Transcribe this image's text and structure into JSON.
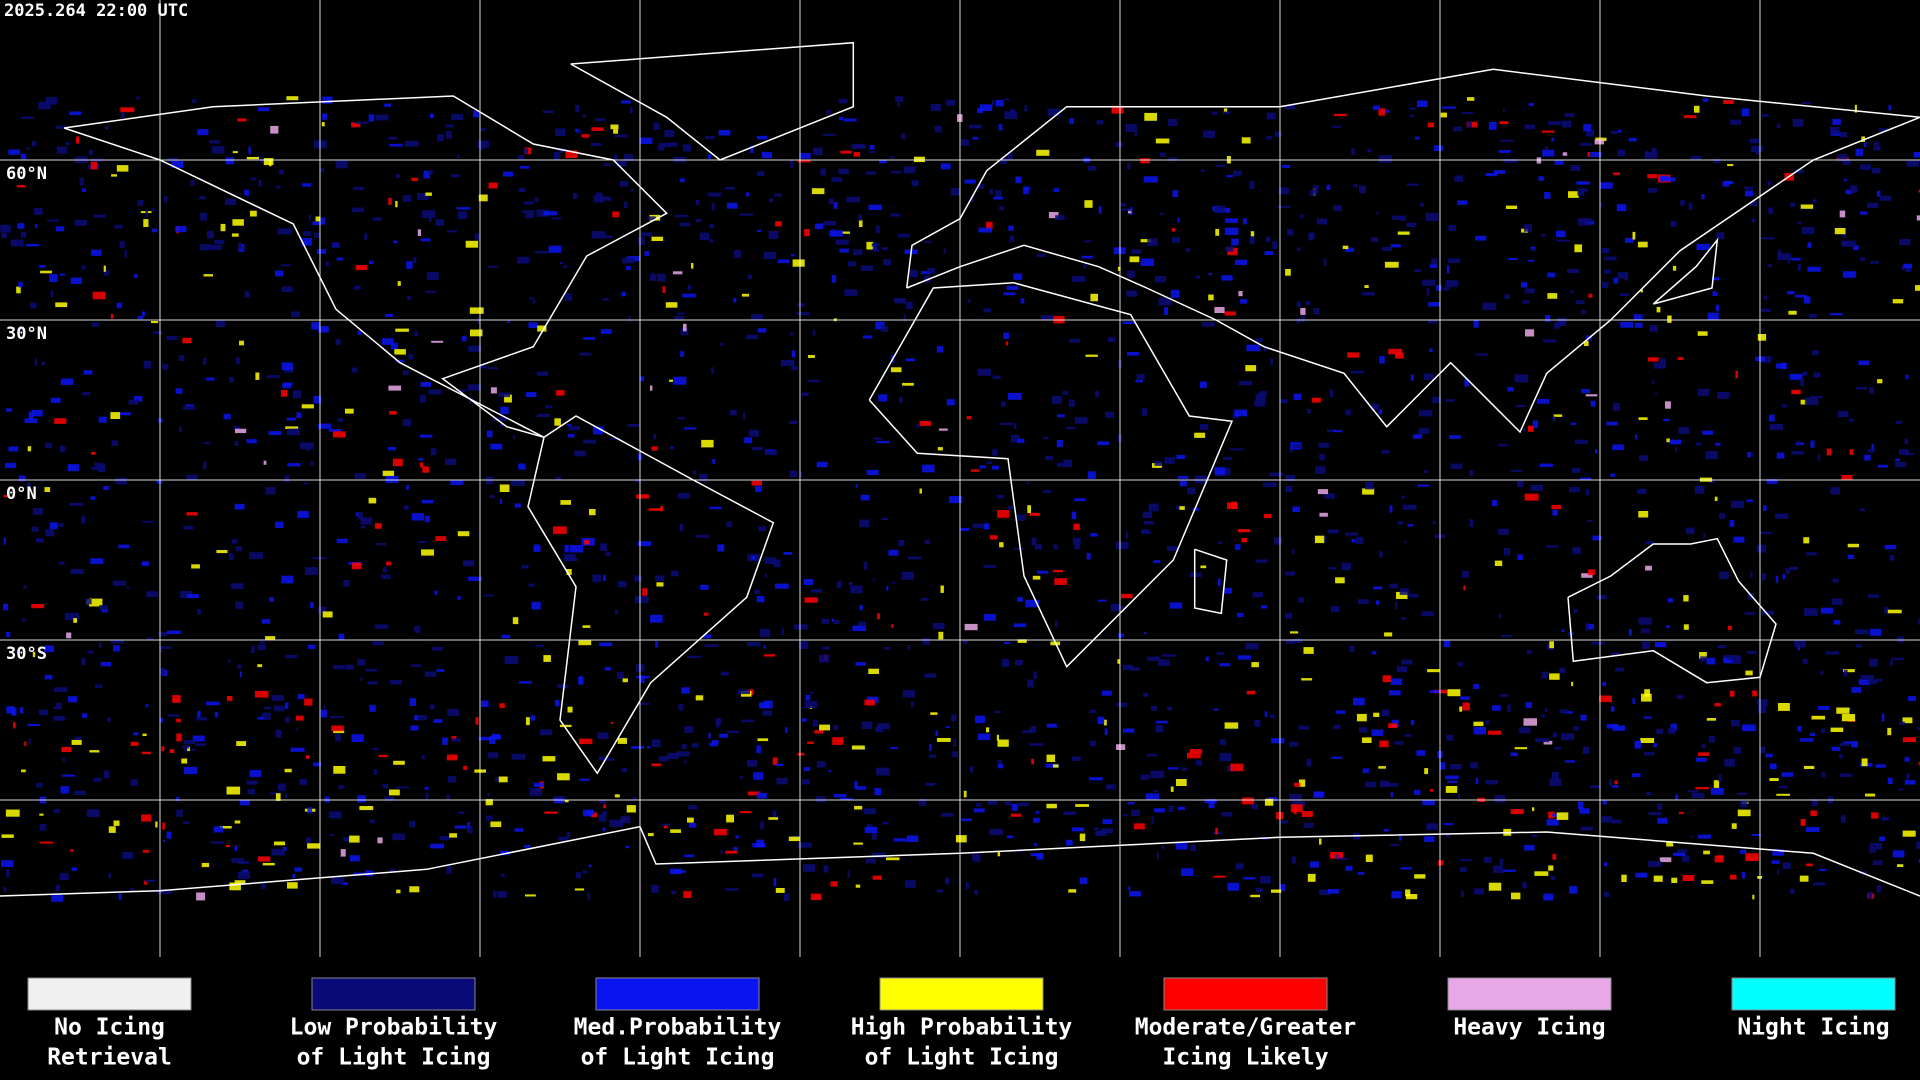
{
  "header": {
    "timestamp": "2025.264 22:00 UTC"
  },
  "grid": {
    "lat_labels": [
      "60°N",
      "30°N",
      "0°N",
      "30°S"
    ]
  },
  "legend": {
    "items": [
      {
        "lines": [
          "No Icing",
          "Retrieval"
        ],
        "color": "#f0f0f0"
      },
      {
        "lines": [
          "Low Probability",
          "of Light Icing"
        ],
        "color": "#0a0a78"
      },
      {
        "lines": [
          "Med.Probability",
          "of Light Icing"
        ],
        "color": "#0a14f0"
      },
      {
        "lines": [
          "High Probability",
          "of Light Icing"
        ],
        "color": "#ffff00"
      },
      {
        "lines": [
          "Moderate/Greater",
          "Icing Likely"
        ],
        "color": "#ff0000"
      },
      {
        "lines": [
          "Heavy Icing"
        ],
        "color": "#e8a8e8"
      },
      {
        "lines": [
          "Night Icing"
        ],
        "color": "#00ffff"
      }
    ]
  }
}
